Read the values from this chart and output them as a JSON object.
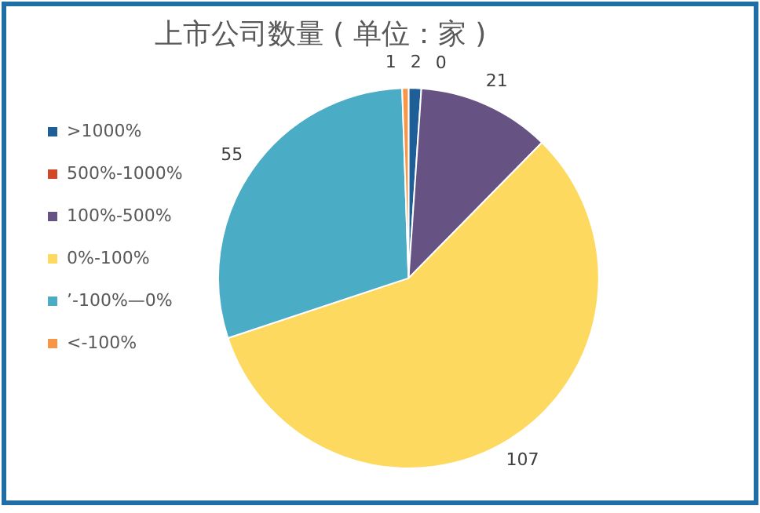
{
  "chart_data": {
    "type": "pie",
    "title": "上市公司数量 ( 单位：家 )",
    "categories": [
      ">1000%",
      "500%-1000%",
      "100%-500%",
      "0%-100%",
      "’-100%—0%",
      "<-100%"
    ],
    "values": [
      2,
      0,
      21,
      107,
      55,
      1
    ],
    "colors": [
      "#1f5f97",
      "#d24726",
      "#675284",
      "#fdd960",
      "#4bacc6",
      "#f79646"
    ],
    "value_labels": [
      "2",
      "0",
      "21",
      "107",
      "55",
      "1"
    ],
    "legend": "left"
  }
}
